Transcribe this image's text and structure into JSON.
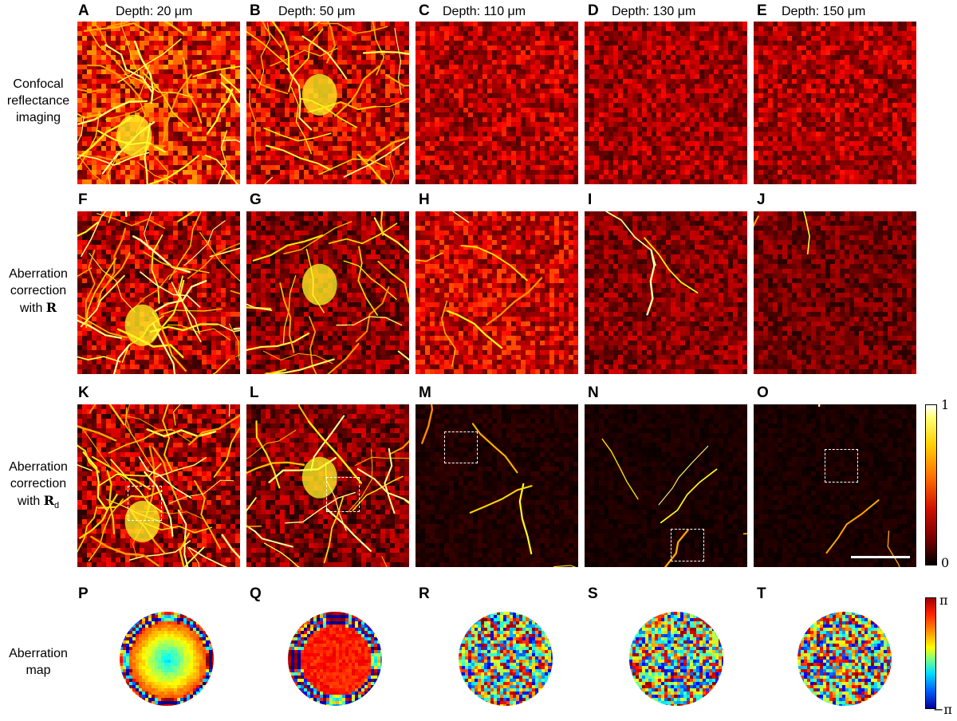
{
  "columns": [
    {
      "label": "A",
      "depth": "Depth: 20 μm"
    },
    {
      "label": "B",
      "depth": "Depth: 50 μm"
    },
    {
      "label": "C",
      "depth": "Depth: 110 μm"
    },
    {
      "label": "D",
      "depth": "Depth: 130 μm"
    },
    {
      "label": "E",
      "depth": "Depth: 150 μm"
    }
  ],
  "rows": {
    "r1": {
      "lines": [
        "Confocal",
        "reflectance",
        "imaging"
      ]
    },
    "r2": {
      "lines": [
        "Aberration",
        "correction",
        "with"
      ],
      "symbol": "R",
      "subscript": ""
    },
    "r3": {
      "lines": [
        "Aberration",
        "correction",
        "with"
      ],
      "symbol": "R",
      "subscript": "d"
    },
    "r4": {
      "lines": [
        "Aberration",
        "map"
      ]
    }
  },
  "panel_letters": {
    "row2": [
      "F",
      "G",
      "H",
      "I",
      "J"
    ],
    "row3": [
      "K",
      "L",
      "M",
      "N",
      "O"
    ],
    "row4": [
      "P",
      "Q",
      "R",
      "S",
      "T"
    ]
  },
  "colorbar_intensity": {
    "max_label": "1",
    "min_label": "0"
  },
  "colorbar_phase": {
    "max_label": "π",
    "min_label": "−π"
  },
  "colors": {
    "hot_dark": "#1a0000",
    "hot_red": "#b00000",
    "hot_orange": "#ff6a00",
    "hot_yellow": "#ffff40",
    "hot_white": "#ffffff"
  }
}
